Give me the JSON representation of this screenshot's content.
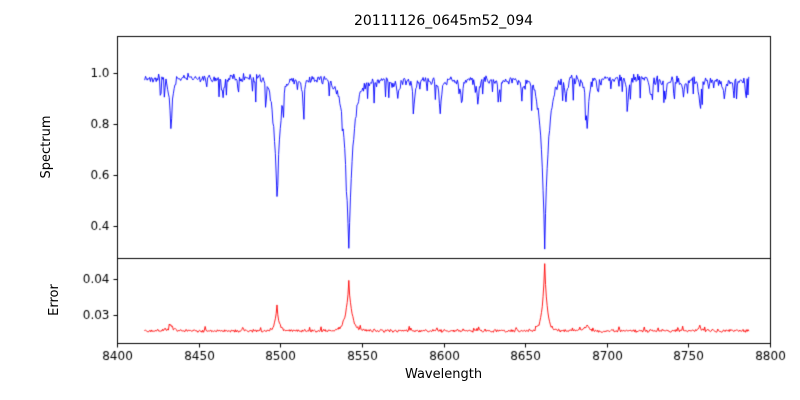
{
  "chart_data": {
    "type": "line",
    "title": "20111126_0645m52_094",
    "xlabel": "Wavelength",
    "x_range": [
      8400,
      8800
    ],
    "x_ticks": [
      8400,
      8450,
      8500,
      8550,
      8600,
      8650,
      8700,
      8750,
      8800
    ],
    "x_tick_labels": [
      "8400",
      "8450",
      "8500",
      "8550",
      "8600",
      "8650",
      "8700",
      "8750",
      "8800"
    ],
    "series_x_start": 8417,
    "series_x_end": 8787,
    "n_points": 740,
    "layout": {
      "shared_x": true,
      "grid": false,
      "height_ratio": [
        2.6,
        1
      ],
      "legend": "none"
    },
    "panels": [
      {
        "name": "spectrum",
        "ylabel": "Spectrum",
        "color": "#0000ff",
        "ylim": [
          0.275,
          1.145
        ],
        "yticks": [
          0.4,
          0.6,
          0.8,
          1.0
        ],
        "ytick_labels": [
          "0.4",
          "0.6",
          "0.8",
          "1.0"
        ],
        "continuum": 0.975,
        "noise_amplitude": 0.02,
        "dip_probability": 0.12,
        "dip_max_depth": 0.09,
        "absorption_lines": [
          {
            "center": 8433,
            "depth": 0.2,
            "width": 1.2
          },
          {
            "center": 8465,
            "depth": 0.08,
            "width": 1.0
          },
          {
            "center": 8498,
            "depth": 0.47,
            "width": 2.2
          },
          {
            "center": 8514,
            "depth": 0.1,
            "width": 1.0
          },
          {
            "center": 8542,
            "depth": 0.66,
            "width": 2.8
          },
          {
            "center": 8572,
            "depth": 0.08,
            "width": 1.0
          },
          {
            "center": 8582,
            "depth": 0.09,
            "width": 1.0
          },
          {
            "center": 8598,
            "depth": 0.12,
            "width": 1.0
          },
          {
            "center": 8611,
            "depth": 0.08,
            "width": 1.0
          },
          {
            "center": 8621,
            "depth": 0.09,
            "width": 1.0
          },
          {
            "center": 8634,
            "depth": 0.07,
            "width": 1.0
          },
          {
            "center": 8648,
            "depth": 0.07,
            "width": 1.0
          },
          {
            "center": 8662,
            "depth": 0.66,
            "width": 2.4
          },
          {
            "center": 8675,
            "depth": 0.09,
            "width": 1.0
          },
          {
            "center": 8688,
            "depth": 0.2,
            "width": 1.4
          },
          {
            "center": 8713,
            "depth": 0.08,
            "width": 1.0
          },
          {
            "center": 8727,
            "depth": 0.07,
            "width": 1.0
          },
          {
            "center": 8736,
            "depth": 0.08,
            "width": 1.0
          },
          {
            "center": 8747,
            "depth": 0.07,
            "width": 1.0
          },
          {
            "center": 8757,
            "depth": 0.09,
            "width": 1.0
          },
          {
            "center": 8772,
            "depth": 0.08,
            "width": 1.0
          }
        ]
      },
      {
        "name": "error",
        "ylabel": "Error",
        "color": "#ff0000",
        "ylim": [
          0.0222,
          0.0458
        ],
        "yticks": [
          0.03,
          0.04
        ],
        "ytick_labels": [
          "0.03",
          "0.04"
        ],
        "baseline": 0.0256,
        "noise_amplitude": 0.0005,
        "spike_probability": 0.05,
        "spike_max_height": 0.0012,
        "emission_peaks": [
          {
            "center": 8433,
            "height": 0.0018,
            "width": 1.2
          },
          {
            "center": 8498,
            "height": 0.007,
            "width": 1.3
          },
          {
            "center": 8542,
            "height": 0.013,
            "width": 2.0
          },
          {
            "center": 8662,
            "height": 0.0185,
            "width": 1.5
          },
          {
            "center": 8688,
            "height": 0.0015,
            "width": 1.2
          },
          {
            "center": 8757,
            "height": 0.0012,
            "width": 1.0
          }
        ]
      }
    ]
  }
}
